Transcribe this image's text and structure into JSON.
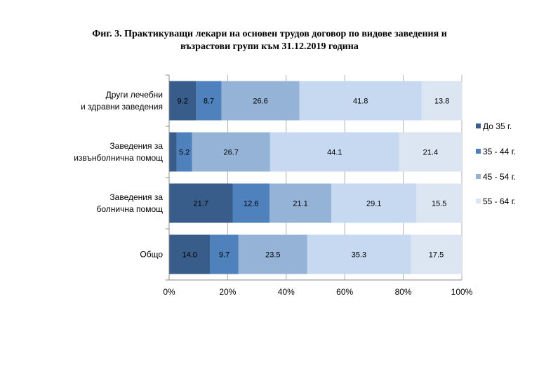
{
  "title": {
    "line1": "Фиг. 3. Практикуващи лекари на основен трудов договор по видове заведения и",
    "line2": "възрастови групи към 31.12.2019 година"
  },
  "chart_data": {
    "type": "bar",
    "orientation": "horizontal",
    "stacked": "percent",
    "categories": [
      [
        "Други лечебни",
        "и здравни заведения"
      ],
      [
        "Заведения за",
        "извънболнична помощ"
      ],
      [
        "Заведения за",
        "болнична помощ"
      ],
      [
        "Общо"
      ]
    ],
    "series": [
      {
        "name": "До 35 г.",
        "color": "#385d8a",
        "values": [
          9.2,
          2.6,
          21.7,
          14.0
        ],
        "labels": [
          "9.2",
          "",
          "21.7",
          "14.0"
        ]
      },
      {
        "name": "35 - 44 г.",
        "color": "#4f81bd",
        "values": [
          8.7,
          5.2,
          12.6,
          9.7
        ],
        "labels": [
          "8.7",
          "5.2",
          "12.6",
          "9.7"
        ]
      },
      {
        "name": "45 - 54 г.",
        "color": "#95b3d7",
        "values": [
          26.6,
          26.7,
          21.1,
          23.5
        ],
        "labels": [
          "26.6",
          "26.7",
          "21.1",
          "23.5"
        ]
      },
      {
        "name": "",
        "color": "#c6d9f1",
        "values": [
          41.8,
          44.1,
          29.1,
          35.3
        ],
        "labels": [
          "41.8",
          "44.1",
          "29.1",
          "35.3"
        ]
      },
      {
        "name": "55 - 64 г.",
        "color": "#dce6f2",
        "values": [
          13.8,
          21.4,
          15.5,
          17.5
        ],
        "labels": [
          "13.8",
          "21.4",
          "15.5",
          "17.5"
        ]
      }
    ],
    "xlim": [
      0,
      100
    ],
    "xticks": [
      "0%",
      "20%",
      "40%",
      "60%",
      "80%",
      "100%"
    ],
    "xgrid": true,
    "legend_position": "right"
  }
}
